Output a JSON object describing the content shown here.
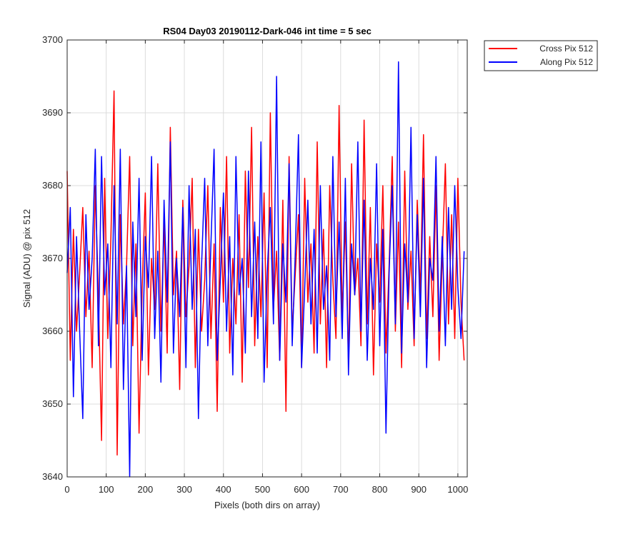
{
  "chart_data": {
    "type": "line",
    "title": "RS04 Day03 20190112-Dark-046 int time = 5 sec",
    "xlabel": "Pixels (both dirs on array)",
    "ylabel": "Signal (ADU) @ pix 512",
    "x": [
      0,
      8,
      16,
      24,
      32,
      40,
      48,
      56,
      64,
      72,
      80,
      88,
      96,
      104,
      112,
      120,
      128,
      136,
      144,
      152,
      160,
      168,
      176,
      184,
      192,
      200,
      208,
      216,
      224,
      232,
      240,
      248,
      256,
      264,
      272,
      280,
      288,
      296,
      304,
      312,
      320,
      328,
      336,
      344,
      352,
      360,
      368,
      376,
      384,
      392,
      400,
      408,
      416,
      424,
      432,
      440,
      448,
      456,
      464,
      472,
      480,
      488,
      496,
      504,
      512,
      520,
      528,
      536,
      544,
      552,
      560,
      568,
      576,
      584,
      592,
      600,
      608,
      616,
      624,
      632,
      640,
      648,
      656,
      664,
      672,
      680,
      688,
      696,
      704,
      712,
      720,
      728,
      736,
      744,
      752,
      760,
      768,
      776,
      784,
      792,
      800,
      808,
      816,
      824,
      832,
      840,
      848,
      856,
      864,
      872,
      880,
      888,
      896,
      904,
      912,
      920,
      928,
      936,
      944,
      952,
      960,
      968,
      976,
      984,
      992,
      1000,
      1008,
      1016
    ],
    "series": [
      {
        "name": "Cross Pix 512",
        "color": "#ff0000",
        "values": [
          3682,
          3656,
          3674,
          3660,
          3668,
          3677,
          3662,
          3671,
          3655,
          3680,
          3665,
          3645,
          3681,
          3659,
          3673,
          3693,
          3643,
          3676,
          3661,
          3669,
          3684,
          3658,
          3672,
          3646,
          3666,
          3679,
          3654,
          3670,
          3663,
          3683,
          3660,
          3675,
          3657,
          3688,
          3665,
          3671,
          3652,
          3678,
          3662,
          3669,
          3681,
          3655,
          3674,
          3660,
          3667,
          3680,
          3659,
          3672,
          3649,
          3677,
          3664,
          3684,
          3657,
          3670,
          3661,
          3676,
          3653,
          3682,
          3666,
          3688,
          3658,
          3673,
          3662,
          3679,
          3655,
          3690,
          3663,
          3671,
          3656,
          3678,
          3649,
          3684,
          3660,
          3668,
          3676,
          3655,
          3681,
          3664,
          3672,
          3657,
          3686,
          3661,
          3674,
          3655,
          3680,
          3667,
          3659,
          3691,
          3662,
          3675,
          3656,
          3683,
          3665,
          3670,
          3658,
          3689,
          3661,
          3677,
          3654,
          3672,
          3664,
          3680,
          3657,
          3669,
          3684,
          3660,
          3675,
          3655,
          3682,
          3663,
          3671,
          3658,
          3678,
          3665,
          3687,
          3659,
          3673,
          3662,
          3680,
          3656,
          3670,
          3683,
          3661,
          3676,
          3659,
          3681,
          3664,
          3656
        ]
      },
      {
        "name": "Along Pix 512",
        "color": "#0000ff",
        "values": [
          3668,
          3677,
          3651,
          3673,
          3660,
          3648,
          3676,
          3663,
          3670,
          3685,
          3658,
          3684,
          3665,
          3672,
          3655,
          3680,
          3661,
          3685,
          3652,
          3669,
          3640,
          3675,
          3662,
          3681,
          3656,
          3673,
          3666,
          3684,
          3659,
          3671,
          3653,
          3678,
          3664,
          3686,
          3657,
          3670,
          3662,
          3677,
          3655,
          3680,
          3663,
          3674,
          3648,
          3669,
          3681,
          3658,
          3672,
          3685,
          3656,
          3667,
          3679,
          3660,
          3673,
          3654,
          3684,
          3665,
          3670,
          3657,
          3682,
          3662,
          3675,
          3659,
          3686,
          3653,
          3668,
          3677,
          3661,
          3695,
          3656,
          3672,
          3664,
          3683,
          3658,
          3671,
          3687,
          3655,
          3666,
          3678,
          3661,
          3674,
          3657,
          3680,
          3663,
          3669,
          3656,
          3684,
          3662,
          3675,
          3659,
          3681,
          3654,
          3672,
          3665,
          3686,
          3660,
          3678,
          3656,
          3670,
          3663,
          3683,
          3658,
          3674,
          3646,
          3668,
          3680,
          3661,
          3697,
          3657,
          3672,
          3664,
          3688,
          3659,
          3676,
          3662,
          3681,
          3655,
          3670,
          3667,
          3684,
          3660,
          3673,
          3658,
          3677,
          3663,
          3680,
          3666,
          3659,
          3671
        ]
      }
    ],
    "xlim": [
      0,
      1024
    ],
    "ylim": [
      3640,
      3700
    ],
    "xticks": [
      0,
      100,
      200,
      300,
      400,
      500,
      600,
      700,
      800,
      900,
      1000
    ],
    "yticks": [
      3640,
      3650,
      3660,
      3670,
      3680,
      3690,
      3700
    ],
    "grid": true,
    "legend": "outside-top-right"
  }
}
